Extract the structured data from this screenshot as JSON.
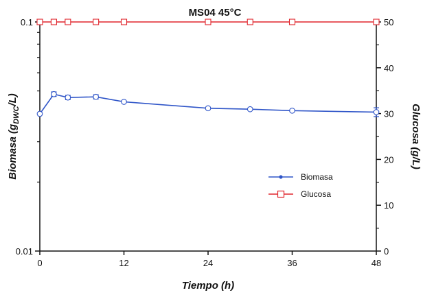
{
  "chart_data": {
    "type": "line",
    "title": "MS04 45°C",
    "xlabel": "Tiempo (h)",
    "ylabel_left": "Biomasa (gDWC/L)",
    "ylabel_left_main": "Biomasa (g",
    "ylabel_left_sub": "DWC",
    "ylabel_left_tail": "/L)",
    "ylabel_right": "Glucosa (g/L)",
    "x_ticks": [
      "0",
      "12",
      "24",
      "36",
      "48"
    ],
    "xlim": [
      0,
      48
    ],
    "y_left_scale": "log",
    "y_left_lim": [
      0.01,
      0.1
    ],
    "y_left_ticks": [
      "0.01",
      "0.1"
    ],
    "y_right_lim": [
      0,
      50
    ],
    "y_right_ticks": [
      "0",
      "10",
      "20",
      "30",
      "40",
      "50"
    ],
    "legend_position": "center-right",
    "grid": false,
    "series": [
      {
        "name": "Biomasa",
        "axis": "left",
        "color": "#2f55c8",
        "marker": "circle-open",
        "x": [
          0,
          2,
          4,
          8,
          12,
          24,
          30,
          36,
          48
        ],
        "y": [
          0.0397,
          0.0484,
          0.0468,
          0.0471,
          0.0448,
          0.042,
          0.0416,
          0.041,
          0.0404
        ],
        "err": [
          0,
          0.0011,
          0.001,
          0.001,
          0,
          0,
          0,
          0,
          0.0018
        ]
      },
      {
        "name": "Glucosa",
        "axis": "right",
        "color": "#e0242b",
        "marker": "square-open",
        "x": [
          0,
          2,
          4,
          8,
          12,
          24,
          30,
          36,
          48
        ],
        "y": [
          50,
          50,
          50,
          50,
          50,
          50,
          50,
          50,
          50
        ]
      }
    ]
  }
}
